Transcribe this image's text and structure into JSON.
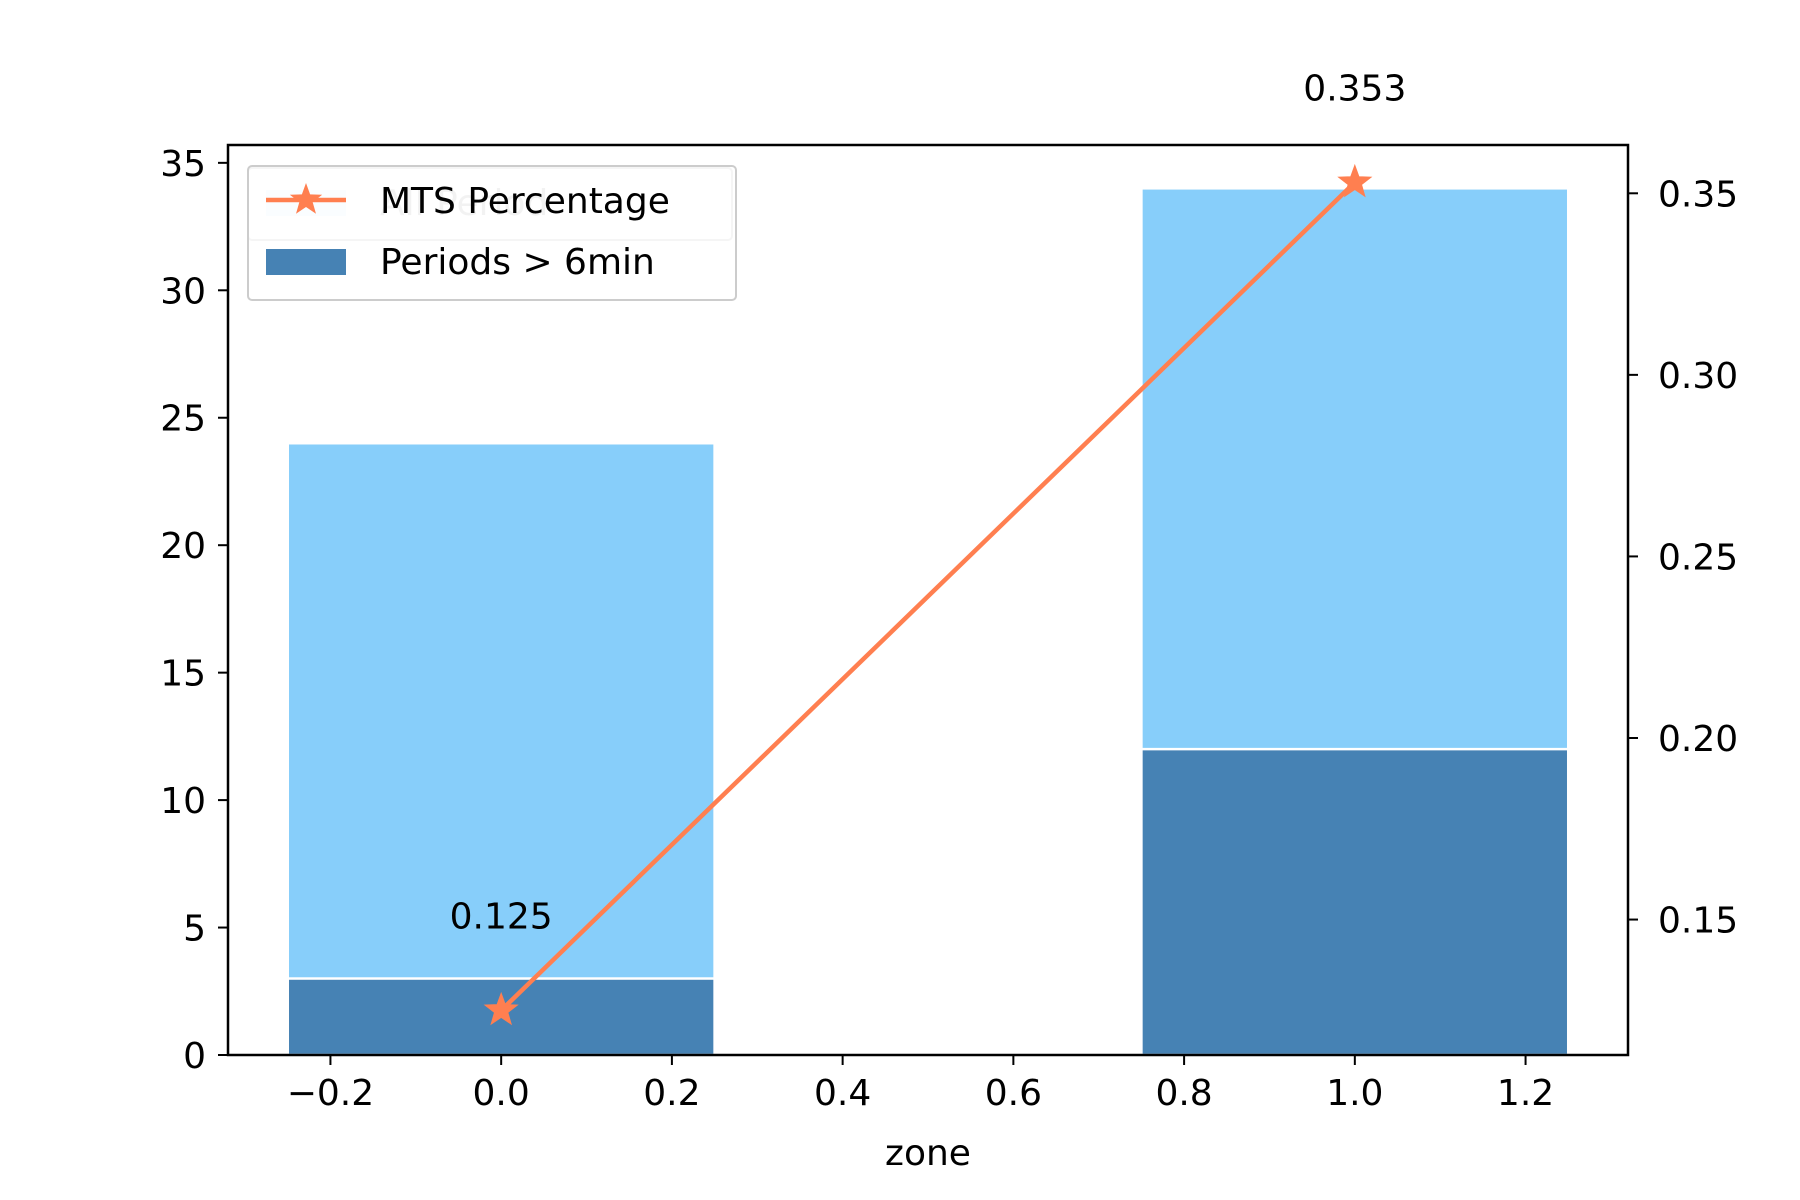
{
  "chart_data": {
    "type": "bar",
    "xlabel": "zone",
    "ylabel": "",
    "y2label": "",
    "xlim": [
      -0.32,
      1.32
    ],
    "ylim": [
      0,
      35.7
    ],
    "y2lim": [
      0.1127,
      0.3633
    ],
    "xticks": [
      -0.2,
      0.0,
      0.2,
      0.4,
      0.6,
      0.8,
      1.0,
      1.2
    ],
    "xtick_labels": [
      "−0.2",
      "0.0",
      "0.2",
      "0.4",
      "0.6",
      "0.8",
      "1.0",
      "1.2"
    ],
    "yticks": [
      0,
      5,
      10,
      15,
      20,
      25,
      30,
      35
    ],
    "ytick_labels": [
      "0",
      "5",
      "10",
      "15",
      "20",
      "25",
      "30",
      "35"
    ],
    "y2ticks": [
      0.15,
      0.2,
      0.25,
      0.3,
      0.35
    ],
    "y2tick_labels": [
      "0.15",
      "0.20",
      "0.25",
      "0.30",
      "0.35"
    ],
    "grid": false,
    "bar_width": 0.5,
    "x": [
      0,
      1
    ],
    "series": [
      {
        "name": "All Period",
        "kind": "bar",
        "axis": "left",
        "color": "#87cefa",
        "values": [
          24,
          34
        ]
      },
      {
        "name": "Periods > 6min",
        "kind": "bar",
        "axis": "left",
        "color": "#4682b4",
        "values": [
          3,
          12
        ]
      },
      {
        "name": "MTS Percentage",
        "kind": "line",
        "axis": "right",
        "color": "#ff7f50",
        "marker": "star",
        "values": [
          0.125,
          0.353
        ]
      }
    ],
    "data_labels": [
      {
        "x": 0,
        "text": "0.125"
      },
      {
        "x": 1,
        "text": "0.353"
      }
    ],
    "legends": [
      {
        "placement": "top-left",
        "entries": [
          {
            "label": "All Period",
            "color": "#87cefa",
            "kind": "bar",
            "faint": true
          }
        ]
      },
      {
        "placement": "top-left",
        "entries": [
          {
            "label": "MTS Percentage",
            "color": "#ff7f50",
            "kind": "line"
          },
          {
            "label": "Periods > 6min",
            "color": "#4682b4",
            "kind": "bar"
          }
        ]
      }
    ]
  }
}
